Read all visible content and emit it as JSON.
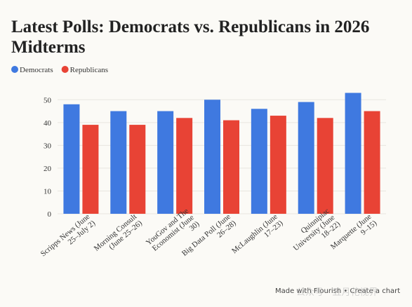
{
  "chart_data": {
    "type": "bar",
    "title": "Latest Polls: Democrats vs. Republicans in 2026 Midterms",
    "categories": [
      [
        "Scripps News (June",
        "25–July 2)"
      ],
      [
        "Morning Consult",
        "(June 25–26)"
      ],
      [
        "YouGov and The",
        "Economist (June",
        "30)"
      ],
      [
        "Big Data Poll (June",
        "26–28)"
      ],
      [
        "McLaughlin (June",
        "17–23)"
      ],
      [
        "Quinnipiac",
        "University (June",
        "18–22)"
      ],
      [
        "Marquette (June",
        "9–15)"
      ]
    ],
    "series": [
      {
        "name": "Democrats",
        "color": "#3f79e0",
        "values": [
          48,
          45,
          45,
          50,
          46,
          49,
          53
        ]
      },
      {
        "name": "Republicans",
        "color": "#e84335",
        "values": [
          39,
          39,
          42,
          41,
          43,
          42,
          45
        ]
      }
    ],
    "ylim": [
      0,
      55
    ],
    "yticks": [
      0,
      10,
      20,
      30,
      40,
      50
    ],
    "grid": true,
    "footer": "Made with Flourish • Create a chart",
    "watermark": "公众号 · 五月花视界"
  }
}
